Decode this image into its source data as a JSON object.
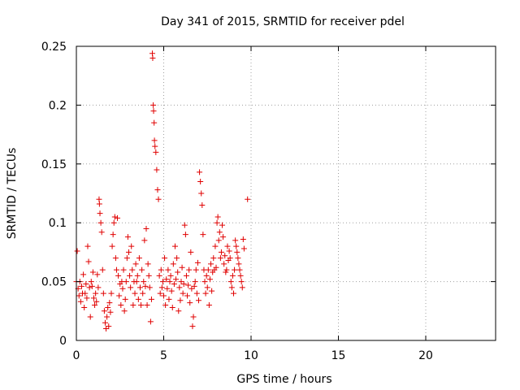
{
  "chart_data": {
    "type": "scatter",
    "title": "Day 341 of 2015, SRMTID for receiver pdel",
    "xlabel": "GPS time / hours",
    "ylabel": "SRMTID / TECUs",
    "xlim": [
      0,
      24
    ],
    "ylim": [
      0,
      0.25
    ],
    "xticks": [
      0,
      5,
      10,
      15,
      20
    ],
    "xtick_labels": [
      "0",
      "5",
      "10",
      "15",
      "20"
    ],
    "yticks": [
      0,
      0.05,
      0.1,
      0.15,
      0.2,
      0.25
    ],
    "ytick_labels": [
      "0",
      "0.05",
      "0.1",
      "0.15",
      "0.2",
      "0.25"
    ],
    "grid": true,
    "marker": "+",
    "color": "#e00000",
    "series": [
      {
        "name": "SRMTID",
        "points": [
          [
            0.0,
            0.05
          ],
          [
            0.05,
            0.076
          ],
          [
            0.1,
            0.044
          ],
          [
            0.15,
            0.038
          ],
          [
            0.2,
            0.05
          ],
          [
            0.25,
            0.033
          ],
          [
            0.3,
            0.046
          ],
          [
            0.35,
            0.04
          ],
          [
            0.4,
            0.056
          ],
          [
            0.45,
            0.028
          ],
          [
            0.5,
            0.04
          ],
          [
            0.55,
            0.048
          ],
          [
            0.6,
            0.036
          ],
          [
            0.65,
            0.08
          ],
          [
            0.7,
            0.067
          ],
          [
            0.75,
            0.045
          ],
          [
            0.8,
            0.02
          ],
          [
            0.85,
            0.05
          ],
          [
            0.9,
            0.046
          ],
          [
            0.95,
            0.058
          ],
          [
            1.0,
            0.036
          ],
          [
            1.05,
            0.03
          ],
          [
            1.1,
            0.04
          ],
          [
            1.15,
            0.033
          ],
          [
            1.2,
            0.056
          ],
          [
            1.25,
            0.045
          ],
          [
            1.3,
            0.12
          ],
          [
            1.32,
            0.116
          ],
          [
            1.35,
            0.108
          ],
          [
            1.4,
            0.1
          ],
          [
            1.45,
            0.092
          ],
          [
            1.5,
            0.06
          ],
          [
            1.55,
            0.04
          ],
          [
            1.6,
            0.025
          ],
          [
            1.65,
            0.015
          ],
          [
            1.7,
            0.01
          ],
          [
            1.75,
            0.02
          ],
          [
            1.8,
            0.028
          ],
          [
            1.85,
            0.012
          ],
          [
            1.9,
            0.032
          ],
          [
            1.95,
            0.024
          ],
          [
            2.0,
            0.04
          ],
          [
            2.05,
            0.08
          ],
          [
            2.1,
            0.09
          ],
          [
            2.15,
            0.1
          ],
          [
            2.2,
            0.105
          ],
          [
            2.25,
            0.07
          ],
          [
            2.3,
            0.06
          ],
          [
            2.35,
            0.104
          ],
          [
            2.4,
            0.055
          ],
          [
            2.45,
            0.038
          ],
          [
            2.5,
            0.048
          ],
          [
            2.55,
            0.03
          ],
          [
            2.6,
            0.05
          ],
          [
            2.65,
            0.044
          ],
          [
            2.7,
            0.06
          ],
          [
            2.75,
            0.025
          ],
          [
            2.8,
            0.035
          ],
          [
            2.85,
            0.05
          ],
          [
            2.9,
            0.07
          ],
          [
            2.95,
            0.088
          ],
          [
            3.0,
            0.075
          ],
          [
            3.05,
            0.055
          ],
          [
            3.1,
            0.045
          ],
          [
            3.15,
            0.08
          ],
          [
            3.2,
            0.06
          ],
          [
            3.25,
            0.03
          ],
          [
            3.3,
            0.05
          ],
          [
            3.35,
            0.04
          ],
          [
            3.4,
            0.065
          ],
          [
            3.45,
            0.05
          ],
          [
            3.5,
            0.055
          ],
          [
            3.55,
            0.035
          ],
          [
            3.6,
            0.07
          ],
          [
            3.65,
            0.045
          ],
          [
            3.7,
            0.03
          ],
          [
            3.75,
            0.06
          ],
          [
            3.8,
            0.04
          ],
          [
            3.85,
            0.05
          ],
          [
            3.9,
            0.085
          ],
          [
            3.95,
            0.046
          ],
          [
            4.0,
            0.095
          ],
          [
            4.05,
            0.03
          ],
          [
            4.1,
            0.065
          ],
          [
            4.15,
            0.055
          ],
          [
            4.2,
            0.045
          ],
          [
            4.25,
            0.016
          ],
          [
            4.3,
            0.035
          ],
          [
            4.35,
            0.244
          ],
          [
            4.37,
            0.24
          ],
          [
            4.4,
            0.2
          ],
          [
            4.42,
            0.195
          ],
          [
            4.45,
            0.185
          ],
          [
            4.47,
            0.17
          ],
          [
            4.5,
            0.165
          ],
          [
            4.55,
            0.16
          ],
          [
            4.6,
            0.145
          ],
          [
            4.65,
            0.128
          ],
          [
            4.7,
            0.12
          ],
          [
            4.75,
            0.055
          ],
          [
            4.8,
            0.04
          ],
          [
            4.85,
            0.06
          ],
          [
            4.9,
            0.045
          ],
          [
            4.95,
            0.05
          ],
          [
            5.0,
            0.038
          ],
          [
            5.05,
            0.07
          ],
          [
            5.1,
            0.03
          ],
          [
            5.15,
            0.052
          ],
          [
            5.2,
            0.044
          ],
          [
            5.25,
            0.06
          ],
          [
            5.3,
            0.035
          ],
          [
            5.35,
            0.05
          ],
          [
            5.4,
            0.055
          ],
          [
            5.45,
            0.042
          ],
          [
            5.5,
            0.028
          ],
          [
            5.55,
            0.065
          ],
          [
            5.6,
            0.048
          ],
          [
            5.65,
            0.08
          ],
          [
            5.7,
            0.052
          ],
          [
            5.75,
            0.07
          ],
          [
            5.8,
            0.058
          ],
          [
            5.85,
            0.025
          ],
          [
            5.9,
            0.045
          ],
          [
            5.95,
            0.034
          ],
          [
            6.0,
            0.05
          ],
          [
            6.05,
            0.062
          ],
          [
            6.1,
            0.04
          ],
          [
            6.15,
            0.048
          ],
          [
            6.2,
            0.098
          ],
          [
            6.25,
            0.09
          ],
          [
            6.3,
            0.055
          ],
          [
            6.35,
            0.038
          ],
          [
            6.4,
            0.047
          ],
          [
            6.45,
            0.06
          ],
          [
            6.5,
            0.032
          ],
          [
            6.55,
            0.075
          ],
          [
            6.6,
            0.044
          ],
          [
            6.65,
            0.012
          ],
          [
            6.7,
            0.02
          ],
          [
            6.75,
            0.046
          ],
          [
            6.8,
            0.05
          ],
          [
            6.85,
            0.06
          ],
          [
            6.9,
            0.04
          ],
          [
            6.95,
            0.066
          ],
          [
            7.0,
            0.034
          ],
          [
            7.05,
            0.143
          ],
          [
            7.1,
            0.135
          ],
          [
            7.15,
            0.125
          ],
          [
            7.2,
            0.115
          ],
          [
            7.25,
            0.09
          ],
          [
            7.3,
            0.06
          ],
          [
            7.35,
            0.05
          ],
          [
            7.4,
            0.04
          ],
          [
            7.45,
            0.055
          ],
          [
            7.5,
            0.045
          ],
          [
            7.55,
            0.06
          ],
          [
            7.6,
            0.03
          ],
          [
            7.65,
            0.052
          ],
          [
            7.7,
            0.065
          ],
          [
            7.75,
            0.042
          ],
          [
            7.8,
            0.058
          ],
          [
            7.85,
            0.07
          ],
          [
            7.9,
            0.06
          ],
          [
            7.95,
            0.08
          ],
          [
            8.0,
            0.062
          ],
          [
            8.05,
            0.1
          ],
          [
            8.1,
            0.105
          ],
          [
            8.15,
            0.085
          ],
          [
            8.2,
            0.092
          ],
          [
            8.25,
            0.07
          ],
          [
            8.3,
            0.075
          ],
          [
            8.35,
            0.098
          ],
          [
            8.4,
            0.088
          ],
          [
            8.45,
            0.065
          ],
          [
            8.5,
            0.072
          ],
          [
            8.55,
            0.058
          ],
          [
            8.6,
            0.06
          ],
          [
            8.65,
            0.08
          ],
          [
            8.7,
            0.068
          ],
          [
            8.75,
            0.076
          ],
          [
            8.8,
            0.07
          ],
          [
            8.85,
            0.05
          ],
          [
            8.9,
            0.045
          ],
          [
            8.95,
            0.055
          ],
          [
            9.0,
            0.04
          ],
          [
            9.05,
            0.06
          ],
          [
            9.1,
            0.085
          ],
          [
            9.15,
            0.08
          ],
          [
            9.2,
            0.075
          ],
          [
            9.25,
            0.07
          ],
          [
            9.3,
            0.065
          ],
          [
            9.35,
            0.06
          ],
          [
            9.4,
            0.055
          ],
          [
            9.45,
            0.05
          ],
          [
            9.5,
            0.045
          ],
          [
            9.55,
            0.086
          ],
          [
            9.6,
            0.078
          ],
          [
            9.8,
            0.12
          ]
        ]
      }
    ]
  }
}
